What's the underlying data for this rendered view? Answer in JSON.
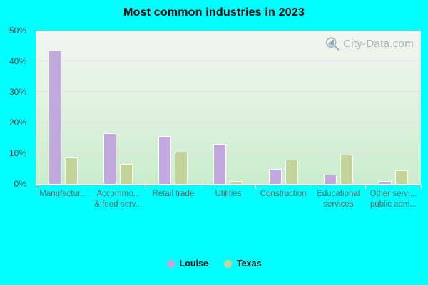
{
  "title": "Most common industries in 2023",
  "watermark": {
    "text": "City-Data.com"
  },
  "colors": {
    "page_background": "#00ffff",
    "louise": "#c1a8dd",
    "texas": "#c3d49a",
    "bar_border": "#ffffff",
    "gridline": "#e6dcee",
    "ytick_text": "#454d47",
    "xtick_text": "#4e6b66",
    "title_text": "#0a0a0a",
    "legend_text": "#111111",
    "watermark_text": "#a9b2ba"
  },
  "chart_data": {
    "type": "bar",
    "title": "Most common industries in 2023",
    "categories": [
      "Manufactur...",
      "Accommo... & food serv...",
      "Retail trade",
      "Utilities",
      "Construction",
      "Educational services",
      "Other servi... public adm..."
    ],
    "series": [
      {
        "name": "Louise",
        "color": "#c1a8dd",
        "values": [
          43.5,
          16.5,
          15.5,
          13,
          5,
          3,
          1
        ]
      },
      {
        "name": "Texas",
        "color": "#c3d49a",
        "values": [
          8.5,
          6.5,
          10.5,
          1,
          8,
          9.5,
          4.5
        ]
      }
    ],
    "xlabel": "",
    "ylabel": "",
    "ylim": [
      0,
      50
    ],
    "yticks": [
      "0%",
      "10%",
      "20%",
      "30%",
      "40%",
      "50%"
    ],
    "grid": true,
    "legend_position": "bottom"
  },
  "x_labels": [
    {
      "line1": "Manufactur...",
      "line2": ""
    },
    {
      "line1": "Accommo...",
      "line2": "& food serv..."
    },
    {
      "line1": "Retail trade",
      "line2": ""
    },
    {
      "line1": "Utilities",
      "line2": ""
    },
    {
      "line1": "Construction",
      "line2": ""
    },
    {
      "line1": "Educational",
      "line2": "services"
    },
    {
      "line1": "Other servi...",
      "line2": "public adm..."
    }
  ],
  "legend": [
    {
      "label": "Louise",
      "color": "#c1a8dd"
    },
    {
      "label": "Texas",
      "color": "#c3d49a"
    }
  ]
}
